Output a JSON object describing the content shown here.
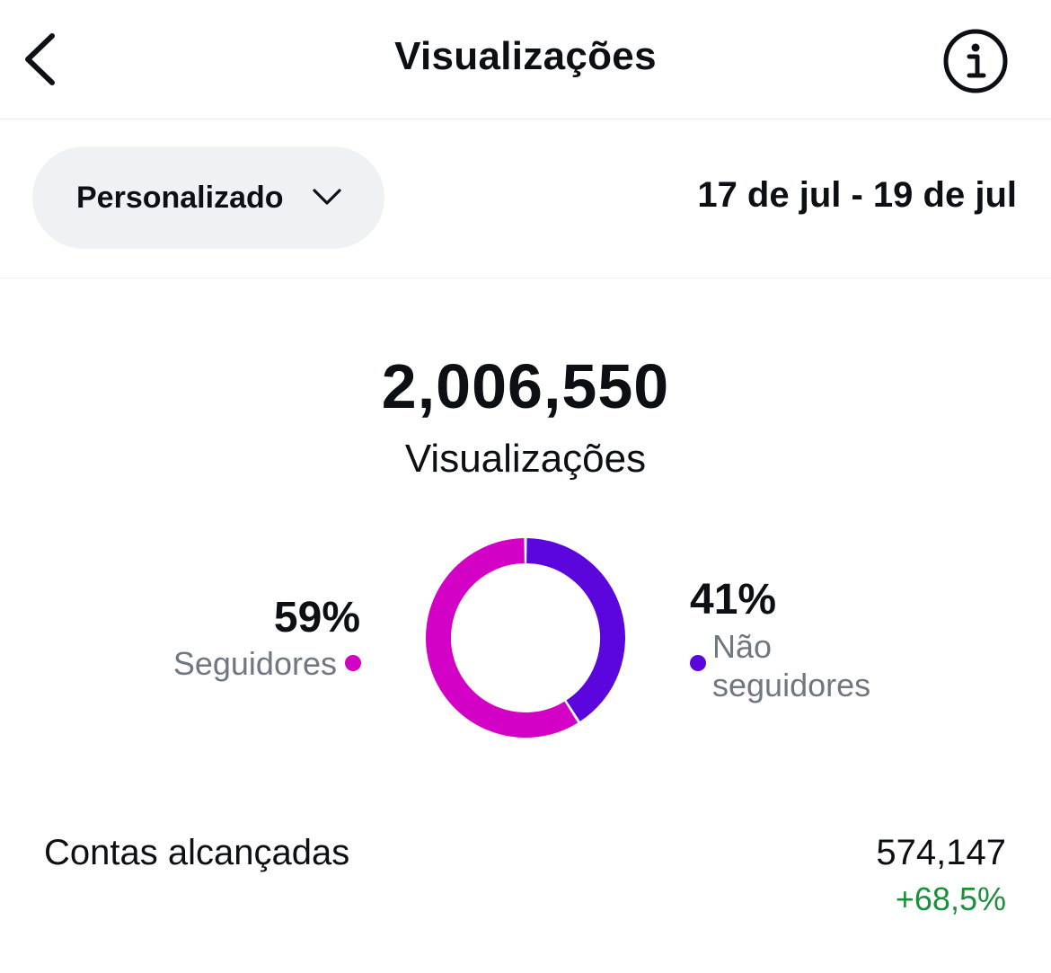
{
  "header": {
    "title": "Visualizações",
    "back_icon": "chevron-left-icon",
    "info_icon": "info-icon"
  },
  "filter": {
    "period_label": "Personalizado",
    "period_icon": "chevron-down-icon",
    "date_range": "17 de jul - 19 de jul"
  },
  "summary": {
    "total_value": "2,006,550",
    "total_label": "Visualizações"
  },
  "breakdown": {
    "followers": {
      "percent_text": "59%",
      "label": "Seguidores",
      "value": 59,
      "color": "#d300c5"
    },
    "non_followers": {
      "percent_text": "41%",
      "label": "Não seguidores",
      "value": 41,
      "color": "#5a06dd"
    }
  },
  "reach": {
    "label": "Contas alcançadas",
    "value": "574,147",
    "change": "+68,5%",
    "change_color": "#1b8f3c"
  }
}
